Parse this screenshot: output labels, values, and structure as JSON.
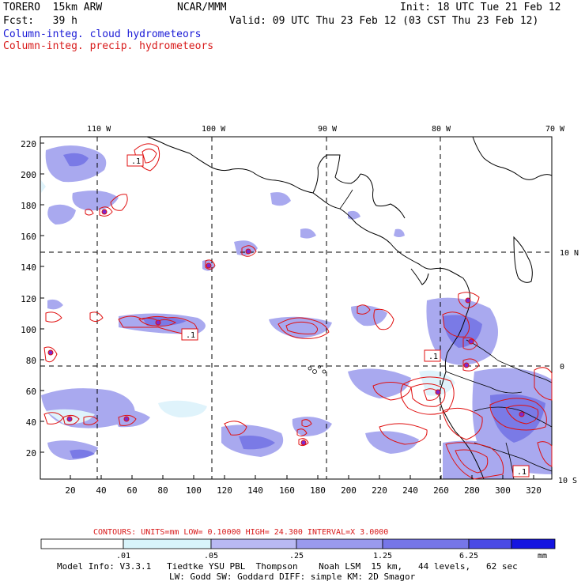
{
  "header": {
    "model": "TORERO  15km ARW",
    "org": "NCAR/MMM",
    "init": "Init: 18 UTC Tue 21 Feb 12",
    "fcst": "Fcst:   39 h",
    "valid": "Valid: 09 UTC Thu 23 Feb 12 (03 CST Thu 23 Feb 12)",
    "field1": "Column-integ. cloud hydrometeors",
    "field2": "Column-integ. precip. hydrometeors"
  },
  "colors": {
    "cloud_fill_light": "#dff3fb",
    "cloud_fill_mid": "#a9a9ef",
    "cloud_fill_dark": "#7a7ae6",
    "precip_contour": "#e01010",
    "coastline": "#000000",
    "grid": "#000000"
  },
  "map": {
    "lon_labels": [
      "110 W",
      "100 W",
      "90 W",
      "80 W",
      "70 W"
    ],
    "lat_labels": [
      "10 N",
      "0",
      "10 S"
    ],
    "x_ticks": [
      "20",
      "40",
      "60",
      "80",
      "100",
      "120",
      "140",
      "160",
      "180",
      "200",
      "220",
      "240",
      "260",
      "280",
      "300",
      "320"
    ],
    "y_ticks": [
      "20",
      "40",
      "60",
      "80",
      "100",
      "120",
      "140",
      "160",
      "180",
      "200",
      "220"
    ],
    "contour_labels": [
      ".1",
      ".1",
      ".1",
      ".1"
    ]
  },
  "legend": {
    "contour_info": "CONTOURS:  UNITS=mm  LOW= 0.10000      HIGH=  24.300      INTERVAL=X  3.0000",
    "bins": [
      ".01",
      ".05",
      ".25",
      "1.25",
      "6.25"
    ],
    "units": "mm",
    "colors": [
      "#ffffff",
      "#d8f4fb",
      "#b9b9f3",
      "#9a9aee",
      "#7676e8",
      "#4a4ae4",
      "#1414e0"
    ]
  },
  "footer": {
    "line1": "Model Info: V3.3.1   Tiedtke YSU PBL  Thompson    Noah LSM  15 km,   44 levels,   62 sec",
    "line2": "LW: Godd SW: Goddard DIFF: simple KM: 2D Smagor"
  }
}
